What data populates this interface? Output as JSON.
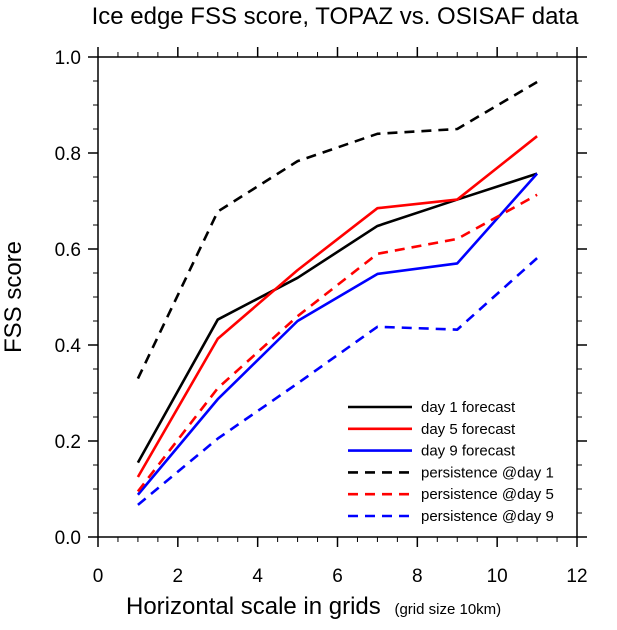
{
  "chart_data": {
    "type": "line",
    "title": "Ice edge FSS score, TOPAZ vs. OSISAF data",
    "xlabel": "Horizontal scale in grids",
    "xlabel_note": "(grid size 10km)",
    "ylabel": "FSS score",
    "xlim": [
      0,
      12
    ],
    "ylim": [
      0,
      1
    ],
    "x_ticks": [
      0,
      2,
      4,
      6,
      8,
      10,
      12
    ],
    "x_tick_labels": [
      "0",
      "2",
      "4",
      "6",
      "8",
      "10",
      "12"
    ],
    "y_ticks": [
      0,
      0.2,
      0.4,
      0.6,
      0.8,
      1.0
    ],
    "y_tick_labels": [
      "0.0",
      "0.2",
      "0.4",
      "0.6",
      "0.8",
      "1.0"
    ],
    "grid": false,
    "legend_position": "bottom-right",
    "x": [
      1,
      3,
      5,
      7,
      9,
      11
    ],
    "series": [
      {
        "name": "day 1 forecast",
        "color": "#000000",
        "dash": "solid",
        "values": [
          0.155,
          0.453,
          0.54,
          0.648,
          0.703,
          0.757
        ]
      },
      {
        "name": "day 5 forecast",
        "color": "#ff0000",
        "dash": "solid",
        "values": [
          0.125,
          0.413,
          0.556,
          0.685,
          0.703,
          0.835
        ]
      },
      {
        "name": "day 9 forecast",
        "color": "#0000ff",
        "dash": "solid",
        "values": [
          0.088,
          0.287,
          0.45,
          0.548,
          0.57,
          0.757
        ]
      },
      {
        "name": "persistence @day 1",
        "color": "#000000",
        "dash": "dashed",
        "values": [
          0.33,
          0.678,
          0.783,
          0.84,
          0.85,
          0.948
        ]
      },
      {
        "name": "persistence @day 5",
        "color": "#ff0000",
        "dash": "dashed",
        "values": [
          0.095,
          0.31,
          0.46,
          0.59,
          0.621,
          0.713
        ]
      },
      {
        "name": "persistence @day 9",
        "color": "#0000ff",
        "dash": "dashed",
        "values": [
          0.067,
          0.205,
          0.32,
          0.438,
          0.432,
          0.581
        ]
      }
    ]
  }
}
